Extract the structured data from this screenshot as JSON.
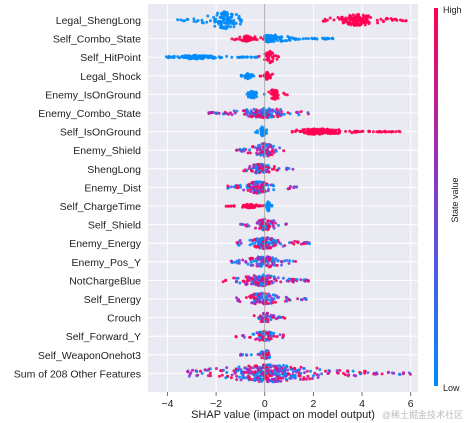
{
  "chart_data": {
    "type": "scatter",
    "subtype": "shap-beeswarm-summary",
    "xlabel": "SHAP value (impact on model output)",
    "xlim": [
      -4.8,
      6.3
    ],
    "xticks": [
      -4,
      -2,
      0,
      2,
      4,
      6
    ],
    "grid": true,
    "colorbar": {
      "label": "State value",
      "high_label": "High",
      "low_label": "Low",
      "high_color": "#ff0052",
      "low_color": "#008bfb"
    },
    "features": [
      {
        "name": "Legal_ShengLong",
        "clusters": [
          {
            "min": -3.6,
            "max": -0.8,
            "center": -1.6,
            "hw": 9,
            "color": "low"
          },
          {
            "min": 2.4,
            "max": 5.9,
            "center": 3.8,
            "hw": 6,
            "color": "high"
          }
        ]
      },
      {
        "name": "Self_Combo_State",
        "clusters": [
          {
            "min": -1.4,
            "max": 0.2,
            "center": -0.7,
            "hw": 3,
            "color": "high"
          },
          {
            "min": 0.0,
            "max": 2.8,
            "center": 0.3,
            "hw": 4,
            "color": "low"
          }
        ]
      },
      {
        "name": "Self_HitPoint",
        "clusters": [
          {
            "min": -4.1,
            "max": -0.3,
            "center": -2.8,
            "hw": 2,
            "color": "low"
          },
          {
            "min": -0.3,
            "max": 0.6,
            "center": 0.2,
            "hw": 6,
            "color": "high"
          }
        ]
      },
      {
        "name": "Legal_Shock",
        "clusters": [
          {
            "min": -1.0,
            "max": -0.4,
            "center": -0.7,
            "hw": 3,
            "color": "low"
          },
          {
            "min": -0.3,
            "max": 0.4,
            "center": 0.1,
            "hw": 4,
            "color": "high"
          }
        ]
      },
      {
        "name": "Enemy_IsOnGround",
        "clusters": [
          {
            "min": -0.9,
            "max": 0.0,
            "center": -0.5,
            "hw": 4,
            "color": "low"
          },
          {
            "min": 0.1,
            "max": 1.0,
            "center": 0.4,
            "hw": 6,
            "color": "high"
          }
        ]
      },
      {
        "name": "Enemy_Combo_State",
        "clusters": [
          {
            "min": -2.3,
            "max": 1.8,
            "center": 0.0,
            "hw": 5,
            "color": "mix"
          }
        ]
      },
      {
        "name": "Self_IsOnGround",
        "clusters": [
          {
            "min": -0.4,
            "max": 0.1,
            "center": -0.1,
            "hw": 5,
            "color": "low"
          },
          {
            "min": 1.1,
            "max": 5.6,
            "center": 2.2,
            "hw": 3,
            "color": "high"
          }
        ]
      },
      {
        "name": "Enemy_Shield",
        "clusters": [
          {
            "min": -1.2,
            "max": 0.9,
            "center": 0.0,
            "hw": 7,
            "color": "mix"
          }
        ]
      },
      {
        "name": "ShengLong",
        "clusters": [
          {
            "min": -0.9,
            "max": 1.2,
            "center": -0.2,
            "hw": 5,
            "color": "mix"
          }
        ]
      },
      {
        "name": "Enemy_Dist",
        "clusters": [
          {
            "min": -1.6,
            "max": 1.4,
            "center": -0.3,
            "hw": 6,
            "color": "mix"
          }
        ]
      },
      {
        "name": "Self_ChargeTime",
        "clusters": [
          {
            "min": -1.6,
            "max": 0.1,
            "center": -0.6,
            "hw": 2,
            "color": "high"
          },
          {
            "min": 0.0,
            "max": 0.3,
            "center": 0.15,
            "hw": 5,
            "color": "low"
          }
        ]
      },
      {
        "name": "Self_Shield",
        "clusters": [
          {
            "min": -1.0,
            "max": 0.9,
            "center": 0.0,
            "hw": 6,
            "color": "mix"
          }
        ]
      },
      {
        "name": "Enemy_Energy",
        "clusters": [
          {
            "min": -1.4,
            "max": 1.9,
            "center": 0.0,
            "hw": 6,
            "color": "mix"
          }
        ]
      },
      {
        "name": "Enemy_Pos_Y",
        "clusters": [
          {
            "min": -1.5,
            "max": 1.3,
            "center": 0.0,
            "hw": 6,
            "color": "mix"
          }
        ]
      },
      {
        "name": "NotChargeBlue",
        "clusters": [
          {
            "min": -1.8,
            "max": 1.8,
            "center": -0.2,
            "hw": 6,
            "color": "mix"
          }
        ]
      },
      {
        "name": "Self_Energy",
        "clusters": [
          {
            "min": -1.2,
            "max": 1.7,
            "center": -0.1,
            "hw": 6,
            "color": "mix"
          }
        ]
      },
      {
        "name": "Crouch",
        "clusters": [
          {
            "min": -0.5,
            "max": 0.9,
            "center": 0.0,
            "hw": 5,
            "color": "mix"
          }
        ]
      },
      {
        "name": "Self_Forward_Y",
        "clusters": [
          {
            "min": -1.2,
            "max": 0.8,
            "center": 0.0,
            "hw": 5,
            "color": "mix"
          }
        ]
      },
      {
        "name": "Self_WeaponOnehot3",
        "clusters": [
          {
            "min": -1.0,
            "max": 0.2,
            "center": 0.0,
            "hw": 5,
            "color": "mix"
          }
        ]
      },
      {
        "name": "Sum of 208 Other Features",
        "clusters": [
          {
            "min": -3.2,
            "max": 6.0,
            "center": 0.2,
            "hw": 9,
            "color": "mix"
          }
        ]
      }
    ]
  },
  "watermark": "@稀土掘金技术社区"
}
